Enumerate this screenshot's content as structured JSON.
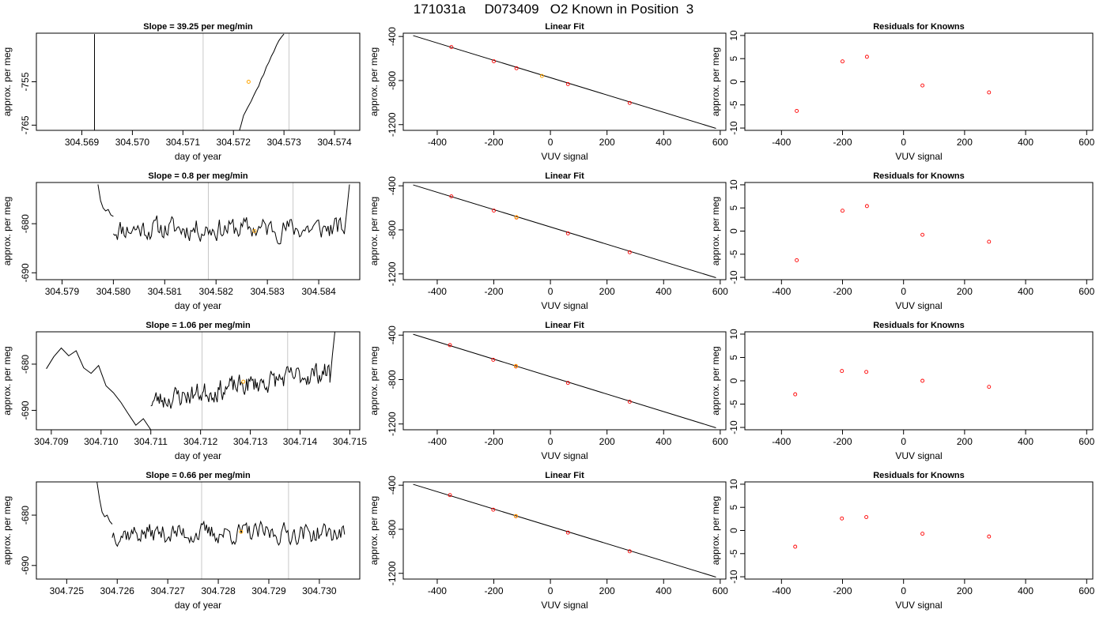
{
  "page_title": "171031a     D073409   O2 Known in Position  3",
  "chart_data": [
    {
      "type": "line",
      "panel": "slope",
      "title": "Slope =  39.25  per meg/min",
      "xlabel": "day of year",
      "ylabel": "approx. per meg",
      "xlim": [
        304.5681,
        304.5745
      ],
      "ylim": [
        -766.2,
        -743.8
      ],
      "x_ticks": [
        304.569,
        304.57,
        304.571,
        304.572,
        304.573,
        304.574
      ],
      "x_tick_labels": [
        "304.569",
        "304.570",
        "304.571",
        "304.572",
        "304.573",
        "304.574"
      ],
      "y_ticks": [
        -755,
        -765
      ],
      "y_tick_labels": [
        "-755",
        "-765"
      ],
      "vlines": [
        304.5714,
        304.5731
      ],
      "marker": {
        "x": 304.5723,
        "y": -755.0
      },
      "series": [
        {
          "x": [
            304.56925,
            304.56925
          ],
          "y": [
            -744,
            -767
          ]
        },
        {
          "x": [
            304.5721,
            304.57215,
            304.5722,
            304.57228,
            304.57235,
            304.5724,
            304.57245,
            304.5725,
            304.57255,
            304.5726,
            304.57265,
            304.5727,
            304.57275,
            304.5728,
            304.57285,
            304.5729,
            304.57295,
            304.573
          ],
          "y": [
            -767,
            -765.0,
            -762.8,
            -761.0,
            -759.5,
            -758.2,
            -757.0,
            -756.0,
            -754.3,
            -753.3,
            -751.6,
            -750.5,
            -749.1,
            -748.0,
            -746.6,
            -745.5,
            -744.7,
            -744.0
          ]
        }
      ]
    },
    {
      "type": "scatter",
      "panel": "fit",
      "title": "Linear Fit",
      "xlabel": "VUV signal",
      "ylabel": "approx. per meg",
      "xlim": [
        -520,
        620
      ],
      "ylim": [
        -1252,
        -370
      ],
      "x_ticks": [
        -400,
        -200,
        0,
        200,
        400,
        600
      ],
      "x_tick_labels": [
        "-400",
        "-200",
        "0",
        "200",
        "400",
        "600"
      ],
      "y_ticks": [
        -400,
        -800,
        -1200
      ],
      "y_tick_labels": [
        "-400",
        "-800",
        "-1200"
      ],
      "fit_line": {
        "x": [
          -485,
          585
        ],
        "y": [
          -392,
          -1234
        ]
      },
      "points": {
        "x": [
          -350,
          -200,
          -120,
          62,
          280
        ],
        "y": [
          -496,
          -625,
          -688,
          -832,
          -1003
        ]
      },
      "marker": {
        "x": -30,
        "y": -758
      }
    },
    {
      "type": "scatter",
      "panel": "residuals",
      "title": "Residuals for Knowns",
      "xlabel": "VUV signal",
      "ylabel": "approx. per meg",
      "xlim": [
        -520,
        620
      ],
      "ylim": [
        -10.5,
        10.5
      ],
      "x_ticks": [
        -400,
        -200,
        0,
        200,
        400,
        600
      ],
      "x_tick_labels": [
        "-400",
        "-200",
        "0",
        "200",
        "400",
        "600"
      ],
      "y_ticks": [
        10,
        5,
        0,
        -5,
        -10
      ],
      "y_tick_labels": [
        "10",
        "5",
        "0",
        "-5",
        "-10"
      ],
      "points": {
        "x": [
          -350,
          -200,
          -120,
          62,
          280
        ],
        "y": [
          -6.3,
          4.4,
          5.4,
          -0.8,
          -2.3
        ]
      }
    },
    {
      "type": "line",
      "panel": "slope",
      "title": "Slope =  0.8  per meg/min",
      "xlabel": "day of year",
      "ylabel": "approx. per meg",
      "xlim": [
        304.5785,
        304.5848
      ],
      "ylim": [
        -691.4,
        -671.6
      ],
      "x_ticks": [
        304.579,
        304.58,
        304.581,
        304.582,
        304.583,
        304.584
      ],
      "x_tick_labels": [
        "304.579",
        "304.580",
        "304.581",
        "304.582",
        "304.583",
        "304.584"
      ],
      "y_ticks": [
        -680,
        -690
      ],
      "y_tick_labels": [
        "-680",
        "-690"
      ],
      "vlines": [
        304.58185,
        304.5835
      ],
      "marker": {
        "x": 304.58275,
        "y": -681.5
      },
      "series": [
        {
          "x": [
            304.5797,
            304.57975,
            304.5798,
            304.57985,
            304.5799,
            304.57995,
            304.58
          ],
          "y": [
            -672,
            -675.3,
            -676.8,
            -677.4,
            -677.1,
            -678.2,
            -678.5
          ]
        }
      ],
      "noise": {
        "x0": 304.58,
        "x1": 304.5845,
        "n": 170,
        "mean": -681.0,
        "amp": 2.3,
        "seed": 11,
        "tail": {
          "x": [
            304.5845,
            304.58455,
            304.5846
          ],
          "y": [
            -682,
            -677,
            -672
          ]
        }
      }
    },
    {
      "type": "scatter",
      "panel": "fit",
      "title": "Linear Fit",
      "xlabel": "VUV signal",
      "ylabel": "approx. per meg",
      "xlim": [
        -520,
        620
      ],
      "ylim": [
        -1252,
        -370
      ],
      "x_ticks": [
        -400,
        -200,
        0,
        200,
        400,
        600
      ],
      "x_tick_labels": [
        "-400",
        "-200",
        "0",
        "200",
        "400",
        "600"
      ],
      "y_ticks": [
        -400,
        -800,
        -1200
      ],
      "y_tick_labels": [
        "-400",
        "-800",
        "-1200"
      ],
      "fit_line": {
        "x": [
          -485,
          585
        ],
        "y": [
          -392,
          -1234
        ]
      },
      "points": {
        "x": [
          -350,
          -200,
          -120,
          62,
          280
        ],
        "y": [
          -496,
          -625,
          -688,
          -832,
          -1003
        ]
      },
      "marker": {
        "x": -120,
        "y": -685
      }
    },
    {
      "type": "scatter",
      "panel": "residuals",
      "title": "Residuals for Knowns",
      "xlabel": "VUV signal",
      "ylabel": "approx. per meg",
      "xlim": [
        -520,
        620
      ],
      "ylim": [
        -10.5,
        10.5
      ],
      "x_ticks": [
        -400,
        -200,
        0,
        200,
        400,
        600
      ],
      "x_tick_labels": [
        "-400",
        "-200",
        "0",
        "200",
        "400",
        "600"
      ],
      "y_ticks": [
        10,
        5,
        0,
        -5,
        -10
      ],
      "y_tick_labels": [
        "10",
        "5",
        "0",
        "-5",
        "-10"
      ],
      "points": {
        "x": [
          -350,
          -200,
          -120,
          62,
          280
        ],
        "y": [
          -6.3,
          4.4,
          5.4,
          -0.8,
          -2.3
        ]
      }
    },
    {
      "type": "line",
      "panel": "slope",
      "title": "Slope =  1.06  per meg/min",
      "xlabel": "day of year",
      "ylabel": "approx. per meg",
      "xlim": [
        304.7087,
        304.7152
      ],
      "ylim": [
        -694.2,
        -673.0
      ],
      "x_ticks": [
        304.709,
        304.71,
        304.711,
        304.712,
        304.713,
        304.714,
        304.715
      ],
      "x_tick_labels": [
        "304.709",
        "304.710",
        "304.711",
        "304.712",
        "304.713",
        "304.714",
        "304.715"
      ],
      "y_ticks": [
        -680,
        -690
      ],
      "y_tick_labels": [
        "-680",
        "-690"
      ],
      "vlines": [
        304.71203,
        304.71375
      ],
      "marker": {
        "x": 304.71286,
        "y": -683.8
      },
      "series": [
        {
          "x": [
            304.7089,
            304.70905,
            304.7092,
            304.70935,
            304.7095,
            304.70965,
            304.7098,
            304.70995,
            304.7101,
            304.71025,
            304.7104,
            304.71055,
            304.7107,
            304.71085,
            304.711
          ],
          "y": [
            -681,
            -678.4,
            -676.5,
            -678.2,
            -677.1,
            -680.8,
            -682.0,
            -680.3,
            -684.7,
            -686.2,
            -688.3,
            -690.8,
            -693.2,
            -691.8,
            -694.2
          ]
        }
      ],
      "noise": {
        "x0": 304.711,
        "x1": 304.7146,
        "n": 170,
        "mean": -688.0,
        "amp": 2.3,
        "seed": 23,
        "trend_end": -681.5,
        "tail": {
          "x": [
            304.7146,
            304.71465,
            304.7147
          ],
          "y": [
            -684,
            -678,
            -673
          ]
        }
      }
    },
    {
      "type": "scatter",
      "panel": "fit",
      "title": "Linear Fit",
      "xlabel": "VUV signal",
      "ylabel": "approx. per meg",
      "xlim": [
        -520,
        620
      ],
      "ylim": [
        -1252,
        -370
      ],
      "x_ticks": [
        -400,
        -200,
        0,
        200,
        400,
        600
      ],
      "x_tick_labels": [
        "-400",
        "-200",
        "0",
        "200",
        "400",
        "600"
      ],
      "y_ticks": [
        -400,
        -800,
        -1200
      ],
      "y_tick_labels": [
        "-400",
        "-800",
        "-1200"
      ],
      "fit_line": {
        "x": [
          -485,
          585
        ],
        "y": [
          -392,
          -1234
        ]
      },
      "points": {
        "x": [
          -355,
          -202,
          -122,
          62,
          280
        ],
        "y": [
          -490,
          -622,
          -682,
          -830,
          -1000
        ]
      },
      "marker": {
        "x": -122,
        "y": -678
      }
    },
    {
      "type": "scatter",
      "panel": "residuals",
      "title": "Residuals for Knowns",
      "xlabel": "VUV signal",
      "ylabel": "approx. per meg",
      "xlim": [
        -520,
        620
      ],
      "ylim": [
        -10.5,
        10.5
      ],
      "x_ticks": [
        -400,
        -200,
        0,
        200,
        400,
        600
      ],
      "x_tick_labels": [
        "-400",
        "-200",
        "0",
        "200",
        "400",
        "600"
      ],
      "y_ticks": [
        10,
        5,
        0,
        -5,
        -10
      ],
      "y_tick_labels": [
        "10",
        "5",
        "0",
        "-5",
        "-10"
      ],
      "points": {
        "x": [
          -355,
          -202,
          -122,
          62,
          280
        ],
        "y": [
          -2.9,
          2.1,
          1.9,
          0.0,
          -1.3
        ]
      }
    },
    {
      "type": "line",
      "panel": "slope",
      "title": "Slope =  0.66  per meg/min",
      "xlabel": "day of year",
      "ylabel": "approx. per meg",
      "xlim": [
        304.7244,
        304.7308
      ],
      "ylim": [
        -692.7,
        -673.4
      ],
      "x_ticks": [
        304.725,
        304.726,
        304.727,
        304.728,
        304.729,
        304.73
      ],
      "x_tick_labels": [
        "304.725",
        "304.726",
        "304.727",
        "304.728",
        "304.729",
        "304.730"
      ],
      "y_ticks": [
        -680,
        -690
      ],
      "y_tick_labels": [
        "-680",
        "-690"
      ],
      "vlines": [
        304.72767,
        304.72939
      ],
      "marker": {
        "x": 304.72845,
        "y": -683.3
      },
      "series": [
        {
          "x": [
            304.7256,
            304.72565,
            304.7257,
            304.72575,
            304.7258,
            304.72585,
            304.7259
          ],
          "y": [
            -673.5,
            -676.8,
            -679.4,
            -680.3,
            -680.0,
            -681.2,
            -681.8
          ]
        }
      ],
      "noise": {
        "x0": 304.7259,
        "x1": 304.7305,
        "n": 180,
        "mean": -683.6,
        "amp": 2.0,
        "seed": 37
      }
    },
    {
      "type": "scatter",
      "panel": "fit",
      "title": "Linear Fit",
      "xlabel": "VUV signal",
      "ylabel": "approx. per meg",
      "xlim": [
        -520,
        620
      ],
      "ylim": [
        -1252,
        -370
      ],
      "x_ticks": [
        -400,
        -200,
        0,
        200,
        400,
        600
      ],
      "x_tick_labels": [
        "-400",
        "-200",
        "0",
        "200",
        "400",
        "600"
      ],
      "y_ticks": [
        -400,
        -800,
        -1200
      ],
      "y_tick_labels": [
        "-400",
        "-800",
        "-1200"
      ],
      "fit_line": {
        "x": [
          -485,
          585
        ],
        "y": [
          -392,
          -1234
        ]
      },
      "points": {
        "x": [
          -355,
          -202,
          -122,
          62,
          280
        ],
        "y": [
          -490,
          -622,
          -682,
          -830,
          -1000
        ]
      },
      "marker": {
        "x": -122,
        "y": -680
      }
    },
    {
      "type": "scatter",
      "panel": "residuals",
      "title": "Residuals for Knowns",
      "xlabel": "VUV signal",
      "ylabel": "approx. per meg",
      "xlim": [
        -520,
        620
      ],
      "ylim": [
        -10.5,
        10.5
      ],
      "x_ticks": [
        -400,
        -200,
        0,
        200,
        400,
        600
      ],
      "x_tick_labels": [
        "-400",
        "-200",
        "0",
        "200",
        "400",
        "600"
      ],
      "y_ticks": [
        10,
        5,
        0,
        -5,
        -10
      ],
      "y_tick_labels": [
        "10",
        "5",
        "0",
        "-5",
        "-10"
      ],
      "points": {
        "x": [
          -355,
          -202,
          -122,
          62,
          280
        ],
        "y": [
          -3.5,
          2.6,
          2.9,
          -0.7,
          -1.3
        ]
      }
    }
  ],
  "colors": {
    "line": "#000000",
    "vline": "#c8c8c8",
    "marker": "#ffa500",
    "points": "#ff0000",
    "axis": "#000000"
  }
}
